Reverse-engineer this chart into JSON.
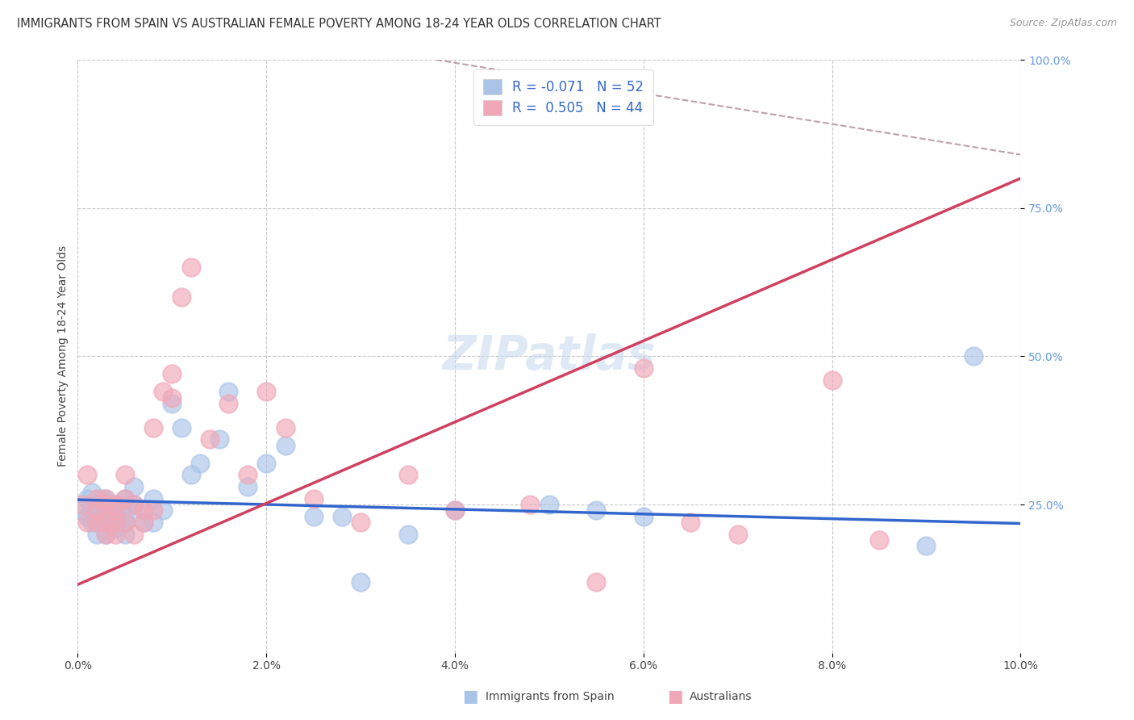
{
  "title": "IMMIGRANTS FROM SPAIN VS AUSTRALIAN FEMALE POVERTY AMONG 18-24 YEAR OLDS CORRELATION CHART",
  "source": "Source: ZipAtlas.com",
  "ylabel": "Female Poverty Among 18-24 Year Olds",
  "xlim": [
    0.0,
    0.1
  ],
  "ylim": [
    0.0,
    1.0
  ],
  "xticks": [
    0.0,
    0.02,
    0.04,
    0.06,
    0.08,
    0.1
  ],
  "xticklabels": [
    "0.0%",
    "2.0%",
    "4.0%",
    "6.0%",
    "8.0%",
    "10.0%"
  ],
  "yticks_right": [
    0.25,
    0.5,
    0.75,
    1.0
  ],
  "yticklabels_right": [
    "25.0%",
    "50.0%",
    "75.0%",
    "100.0%"
  ],
  "r_blue": -0.071,
  "n_blue": 52,
  "r_pink": 0.505,
  "n_pink": 44,
  "blue_marker_color": "#aac4e8",
  "pink_marker_color": "#f0a8b8",
  "blue_line_color": "#3366cc",
  "pink_line_color": "#d04060",
  "dash_line_color": "#c0a0a8",
  "background_color": "#ffffff",
  "grid_color": "#c8c8c8",
  "right_tick_color": "#6699dd",
  "title_fontsize": 10.5,
  "axis_label_fontsize": 10,
  "tick_fontsize": 10,
  "legend_fontsize": 12,
  "blue_scatter_x": [
    0.0005,
    0.001,
    0.001,
    0.0015,
    0.0015,
    0.002,
    0.002,
    0.002,
    0.002,
    0.0025,
    0.003,
    0.003,
    0.003,
    0.003,
    0.003,
    0.003,
    0.004,
    0.004,
    0.004,
    0.004,
    0.004,
    0.005,
    0.005,
    0.005,
    0.005,
    0.005,
    0.006,
    0.006,
    0.007,
    0.007,
    0.008,
    0.008,
    0.009,
    0.01,
    0.011,
    0.012,
    0.013,
    0.015,
    0.016,
    0.018,
    0.02,
    0.022,
    0.025,
    0.028,
    0.03,
    0.035,
    0.04,
    0.05,
    0.055,
    0.06,
    0.09,
    0.095
  ],
  "blue_scatter_y": [
    0.24,
    0.26,
    0.23,
    0.27,
    0.22,
    0.25,
    0.24,
    0.22,
    0.2,
    0.26,
    0.25,
    0.24,
    0.23,
    0.22,
    0.26,
    0.2,
    0.25,
    0.23,
    0.22,
    0.24,
    0.21,
    0.26,
    0.25,
    0.23,
    0.22,
    0.2,
    0.28,
    0.25,
    0.24,
    0.22,
    0.26,
    0.22,
    0.24,
    0.42,
    0.38,
    0.3,
    0.32,
    0.36,
    0.44,
    0.28,
    0.32,
    0.35,
    0.23,
    0.23,
    0.12,
    0.2,
    0.24,
    0.25,
    0.24,
    0.23,
    0.18,
    0.5
  ],
  "pink_scatter_x": [
    0.0005,
    0.001,
    0.001,
    0.002,
    0.002,
    0.002,
    0.003,
    0.003,
    0.003,
    0.003,
    0.004,
    0.004,
    0.004,
    0.004,
    0.005,
    0.005,
    0.005,
    0.006,
    0.006,
    0.007,
    0.007,
    0.008,
    0.008,
    0.009,
    0.01,
    0.01,
    0.011,
    0.012,
    0.014,
    0.016,
    0.018,
    0.02,
    0.022,
    0.025,
    0.03,
    0.035,
    0.04,
    0.048,
    0.055,
    0.06,
    0.065,
    0.07,
    0.08,
    0.085
  ],
  "pink_scatter_y": [
    0.25,
    0.3,
    0.22,
    0.26,
    0.22,
    0.24,
    0.25,
    0.22,
    0.26,
    0.2,
    0.25,
    0.22,
    0.24,
    0.2,
    0.26,
    0.22,
    0.3,
    0.25,
    0.2,
    0.24,
    0.22,
    0.38,
    0.24,
    0.44,
    0.47,
    0.43,
    0.6,
    0.65,
    0.36,
    0.42,
    0.3,
    0.44,
    0.38,
    0.26,
    0.22,
    0.3,
    0.24,
    0.25,
    0.12,
    0.48,
    0.22,
    0.2,
    0.46,
    0.19
  ],
  "blue_line_x0": 0.0,
  "blue_line_y0": 0.258,
  "blue_line_x1": 0.1,
  "blue_line_y1": 0.218,
  "pink_line_x0": 0.0,
  "pink_line_y0": 0.115,
  "pink_line_x1": 0.1,
  "pink_line_y1": 0.8,
  "dash_line_x0": 0.038,
  "dash_line_y0": 1.0,
  "dash_line_x1": 0.1,
  "dash_line_y1": 0.84
}
